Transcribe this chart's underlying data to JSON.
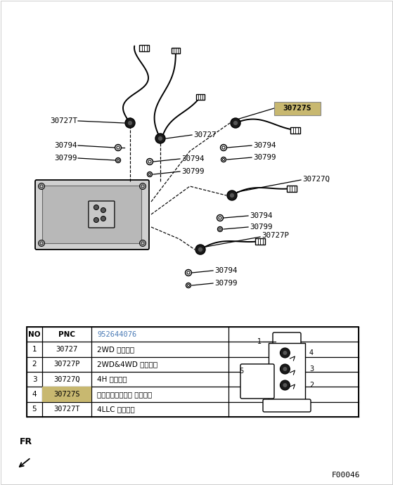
{
  "white": "#ffffff",
  "black": "#000000",
  "tan_highlight": "#c8b870",
  "blue_text": "#4a7ab5",
  "gray_bg": "#e8e8e8",
  "table_rows": [
    [
      "1",
      "30727",
      "2WD スイッチ"
    ],
    [
      "2",
      "30727P",
      "2WD&4WD スイッチ"
    ],
    [
      "3",
      "30727Q",
      "4H スイッチ"
    ],
    [
      "4",
      "30727S",
      "センタデフロック スイッチ"
    ],
    [
      "5",
      "30727T",
      "4LLC スイッチ"
    ]
  ],
  "pnc_header": "952644076",
  "footer_left": "FR",
  "footer_right": "F00046",
  "highlight_row_no": 4,
  "fig_w": 5.59,
  "fig_h": 6.9,
  "dpi": 100
}
